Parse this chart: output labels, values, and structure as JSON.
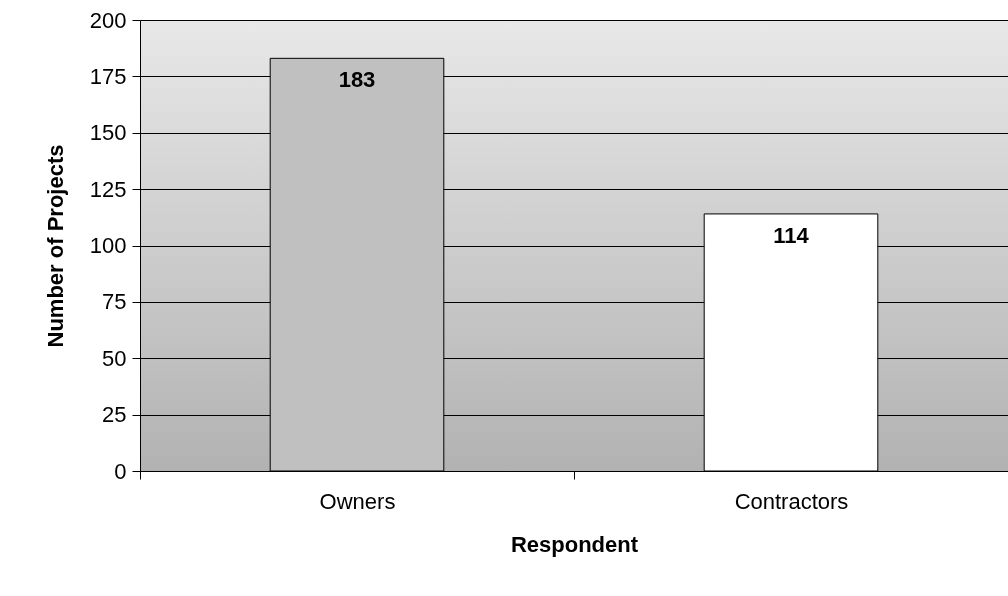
{
  "chart_data": {
    "type": "bar",
    "xlabel": "Respondent",
    "ylabel": "Number of Projects",
    "categories": [
      "Owners",
      "Contractors"
    ],
    "values": [
      183,
      114
    ],
    "colors": [
      "#c0c0c0",
      "#ffffff"
    ],
    "ylim": [
      0,
      200
    ],
    "yticks": [
      0,
      25,
      50,
      75,
      100,
      125,
      150,
      175,
      200
    ],
    "grid": "y",
    "data_labels": true
  }
}
